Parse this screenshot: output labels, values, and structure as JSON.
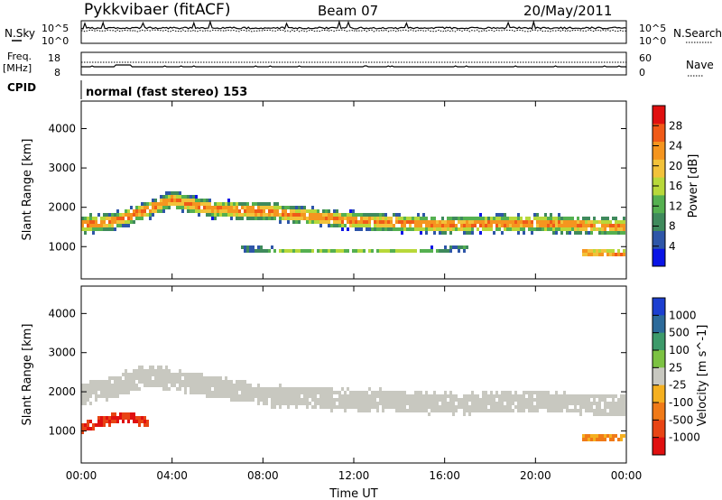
{
  "header": {
    "title": "Pykkvibaer (fitACF)",
    "beam": "Beam 07",
    "date": "20/May/2011"
  },
  "small_panels": {
    "nsky_label": "N.Sky",
    "nsearch_label": "N.Search",
    "freq_label_line1": "Freq.",
    "freq_label_line2": "[MHz]",
    "nave_label": "Nave",
    "cpid_label": "CPID",
    "cpid_text": "normal (fast stereo) 153",
    "nsky_ticks": [
      "10^5",
      "10^0"
    ],
    "nsearch_ticks": [
      "10^5",
      "10^0"
    ],
    "freq_ticks": [
      18,
      8
    ],
    "nave_ticks": [
      60,
      0
    ]
  },
  "colors": {
    "power_scale": [
      "#0a14e6",
      "#2e56a8",
      "#3f8a5c",
      "#55b050",
      "#b8d83a",
      "#f2c23a",
      "#f5951f",
      "#f05a18",
      "#e01010"
    ],
    "velocity_scale": [
      "#1c3fd0",
      "#2c6a9a",
      "#3d9a6a",
      "#7cc242",
      "#c8c8c0",
      "#f5b020",
      "#f07a18",
      "#e84414",
      "#e01010"
    ],
    "ground_scatter": "#c8c8c0"
  },
  "chart_data": [
    {
      "type": "heatmap",
      "name": "power",
      "xlabel": "",
      "ylabel": "Slant Range [km]",
      "xlim": [
        0,
        24
      ],
      "ylim": [
        180,
        4700
      ],
      "yticks": [
        1000,
        2000,
        3000,
        4000
      ],
      "colorbar": {
        "label": "Power [dB]",
        "range": [
          0,
          32
        ],
        "ticks": [
          4,
          8,
          12,
          16,
          20,
          24,
          28
        ]
      },
      "bands": [
        {
          "hours": [
            0,
            1.5,
            3,
            4,
            5,
            6,
            8,
            12,
            16,
            20,
            24
          ],
          "center_km": [
            1550,
            1650,
            1950,
            2200,
            2050,
            1950,
            1900,
            1650,
            1550,
            1600,
            1500
          ],
          "width_km": 420,
          "peak_db": 24
        },
        {
          "hours": [
            7,
            10,
            14,
            17
          ],
          "center_km": [
            950,
            880,
            880,
            950
          ],
          "width_km": 120,
          "peak_db": 14
        },
        {
          "hours": [
            22,
            24
          ],
          "center_km": [
            850,
            830
          ],
          "width_km": 180,
          "peak_db": 28
        }
      ]
    },
    {
      "type": "heatmap",
      "name": "velocity",
      "xlabel": "Time UT",
      "ylabel": "Slant Range [km]",
      "xlim": [
        0,
        24
      ],
      "ylim": [
        180,
        4700
      ],
      "yticks": [
        1000,
        2000,
        3000,
        4000
      ],
      "xtick_labels": [
        "00:00",
        "04:00",
        "08:00",
        "12:00",
        "16:00",
        "20:00",
        "00:00"
      ],
      "xticks": [
        0,
        4,
        8,
        12,
        16,
        20,
        24
      ],
      "colorbar": {
        "label": "Velocity [m s^-1]",
        "tick_labels": [
          "1000",
          "500",
          "100",
          "25",
          "-25",
          "-100",
          "-500",
          "-1000"
        ]
      },
      "bands": [
        {
          "hours": [
            0,
            3,
            5,
            8,
            12,
            16,
            20,
            24
          ],
          "center_km": [
            1900,
            2400,
            2200,
            1900,
            1800,
            1700,
            1750,
            1650
          ],
          "width_km": 520,
          "value": 0
        },
        {
          "hours": [
            0,
            1,
            2,
            3
          ],
          "center_km": [
            1100,
            1250,
            1350,
            1200
          ],
          "width_km": 260,
          "value": -700
        },
        {
          "hours": [
            22,
            24
          ],
          "center_km": [
            850,
            850
          ],
          "width_km": 160,
          "value": -250
        }
      ]
    }
  ]
}
